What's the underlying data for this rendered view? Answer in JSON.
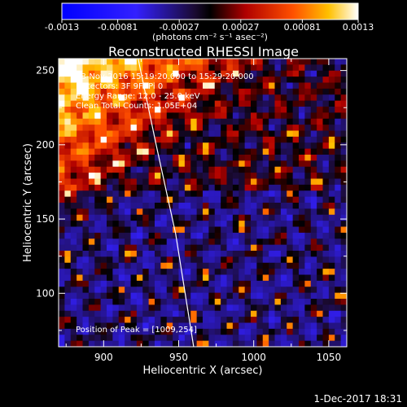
{
  "chart_data": {
    "type": "heatmap",
    "title": "Reconstructed RHESSI Image",
    "xlabel": "Heliocentric X (arcsec)",
    "ylabel": "Heliocentric Y (arcsec)",
    "xlim": [
      870,
      1062
    ],
    "ylim": [
      64,
      258
    ],
    "xticks": [
      900,
      950,
      1000,
      1050
    ],
    "yticks": [
      100,
      150,
      200,
      250
    ],
    "colorbar": {
      "range": [
        -0.0013,
        0.0013
      ],
      "tick_values": [
        -0.0013,
        -0.00081,
        -0.00027,
        0.00027,
        0.00081,
        0.0013
      ],
      "tick_labels": [
        "-0.0013",
        "-0.00081",
        "-0.00027",
        "0.00027",
        "0.00081",
        "0.0013"
      ],
      "units": "(photons cm⁻² s⁻¹ asec⁻²)"
    },
    "annotations": [
      "28-Nov-2016 15:19:20.000 to 15:29:20.000",
      "Detectors: 3F 9F, Pi 0",
      "Energy Range: 12.0 - 25.0 keV",
      "Clean    Total Counts: 1.05E+04"
    ],
    "peak_label": "Position of Peak = [1009,254]",
    "peak": {
      "x": 1009,
      "y": 254
    },
    "limb_curve": {
      "x": [
        960,
        948,
        935,
        923
      ],
      "y": [
        64,
        140,
        200,
        258
      ]
    },
    "grid": false
  },
  "footer": {
    "timestamp": "1-Dec-2017 18:31"
  }
}
